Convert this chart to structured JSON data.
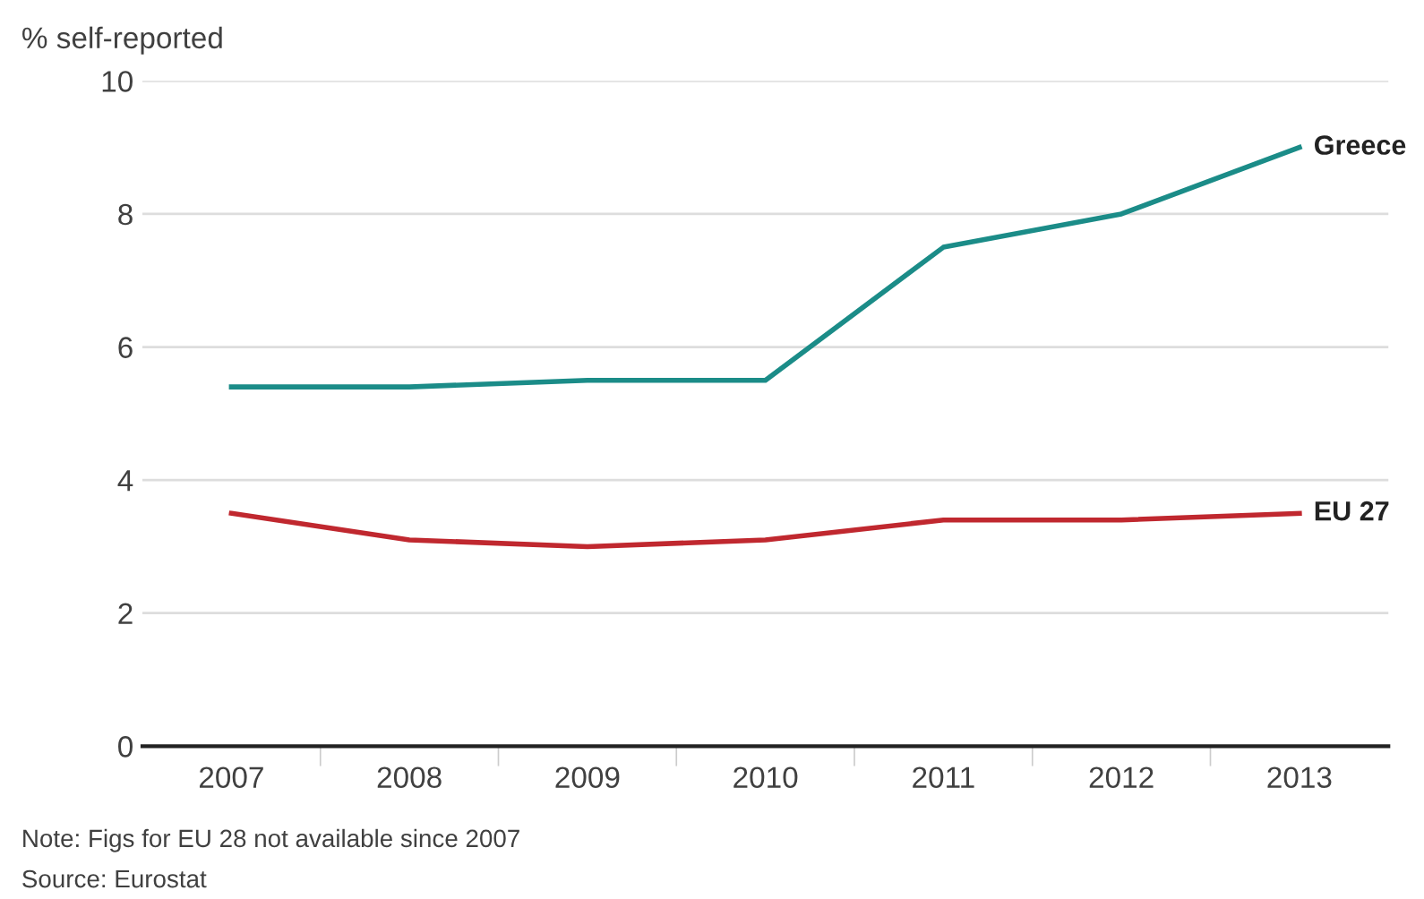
{
  "chart_data": {
    "type": "line",
    "ylabel": "% self-reported",
    "categories": [
      "2007",
      "2008",
      "2009",
      "2010",
      "2011",
      "2012",
      "2013"
    ],
    "series": [
      {
        "name": "Greece",
        "color": "#1b8c88",
        "values": [
          5.4,
          5.4,
          5.5,
          5.5,
          7.5,
          8.0,
          9.0
        ]
      },
      {
        "name": "EU 27",
        "color": "#c0282f",
        "values": [
          3.5,
          3.1,
          3.0,
          3.1,
          3.4,
          3.4,
          3.5
        ]
      }
    ],
    "ylim": [
      0,
      10
    ],
    "yticks": [
      0,
      2,
      4,
      6,
      8,
      10
    ],
    "grid": "y",
    "legend": false,
    "marker": "none",
    "line_style": "solid",
    "annotations": [
      "Note: Figs for EU 28 not available since 2007",
      "Source: Eurostat"
    ]
  }
}
